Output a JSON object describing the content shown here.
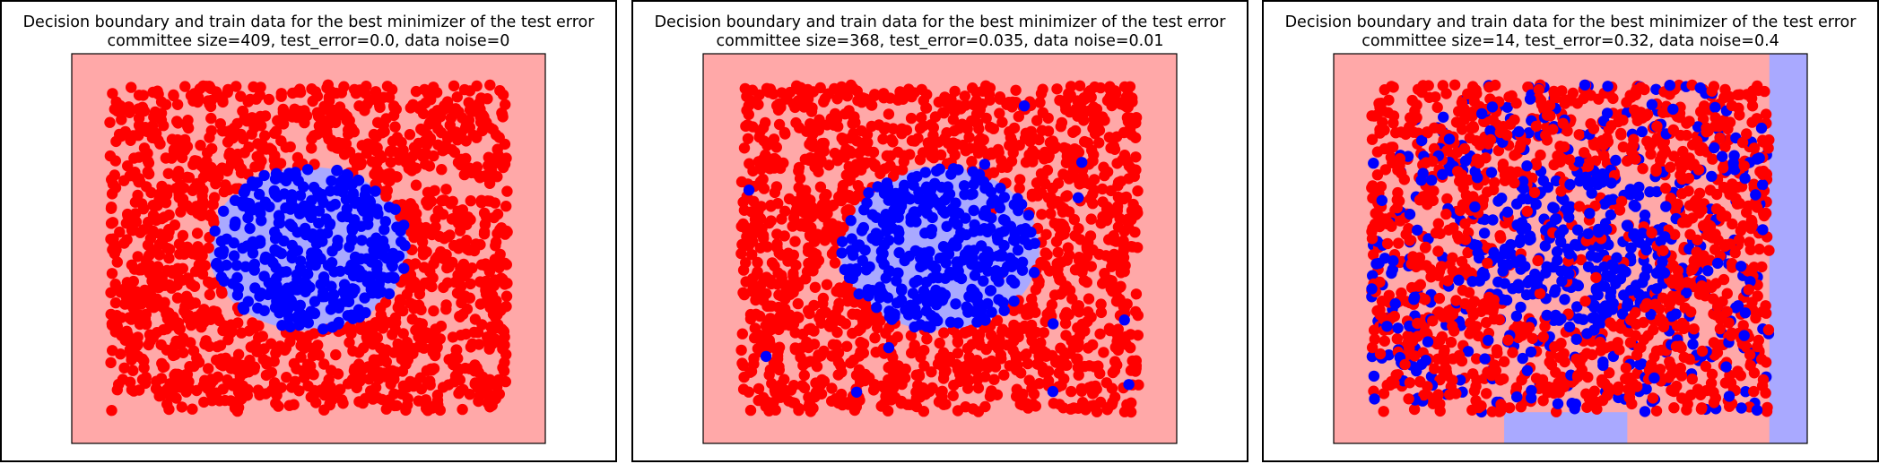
{
  "colors": {
    "region_class0": "#ffa8a8",
    "region_class1": "#a9a9ff",
    "points_class0": "#ff0000",
    "points_class1": "#0000ff"
  },
  "chart_data": [
    {
      "type": "scatter",
      "title_line1": "Decision boundary and train data for the best minimizer of the test error",
      "title_line2": "committee size=409, test_error=0.0, data noise=0",
      "xlim": [
        0,
        1
      ],
      "ylim": [
        0,
        1
      ],
      "grid": false,
      "data_extent": {
        "x": [
          0.08,
          0.92
        ],
        "y": [
          0.08,
          0.92
        ]
      },
      "blue_disk": {
        "cx": 0.5,
        "cy": 0.5,
        "r": 0.21
      },
      "noise": 0,
      "boundary_regions": [
        {
          "class": 0,
          "x": [
            0,
            1
          ],
          "y": [
            0,
            1
          ]
        },
        {
          "class": 1,
          "shape": "disk",
          "cx": 0.5,
          "cy": 0.5,
          "r": 0.21
        }
      ]
    },
    {
      "type": "scatter",
      "title_line1": "Decision boundary and train data for the best minimizer of the test error",
      "title_line2": "committee size=368, test_error=0.035, data noise=0.01",
      "xlim": [
        0,
        1
      ],
      "ylim": [
        0,
        1
      ],
      "grid": false,
      "data_extent": {
        "x": [
          0.08,
          0.92
        ],
        "y": [
          0.08,
          0.92
        ]
      },
      "blue_disk": {
        "cx": 0.5,
        "cy": 0.5,
        "r": 0.21
      },
      "noise": 0.01,
      "boundary_regions": [
        {
          "class": 0,
          "x": [
            0,
            1
          ],
          "y": [
            0,
            1
          ]
        },
        {
          "class": 1,
          "shape": "disk",
          "cx": 0.5,
          "cy": 0.5,
          "r": 0.21
        }
      ]
    },
    {
      "type": "scatter",
      "title_line1": "Decision boundary and train data for the best minimizer of the test error",
      "title_line2": "committee size=14, test_error=0.32, data noise=0.4",
      "xlim": [
        0,
        1
      ],
      "ylim": [
        0,
        1
      ],
      "grid": false,
      "data_extent": {
        "x": [
          0.08,
          0.92
        ],
        "y": [
          0.08,
          0.92
        ]
      },
      "blue_disk": {
        "cx": 0.5,
        "cy": 0.5,
        "r": 0.21
      },
      "noise": 0.4,
      "boundary_regions": [
        {
          "class": 0,
          "x": [
            0,
            1
          ],
          "y": [
            0,
            1
          ]
        },
        {
          "class": 1,
          "x": [
            0.92,
            1.0
          ],
          "y": [
            0,
            1
          ]
        },
        {
          "class": 1,
          "x": [
            0.36,
            0.62
          ],
          "y": [
            0,
            0.08
          ]
        }
      ]
    }
  ]
}
